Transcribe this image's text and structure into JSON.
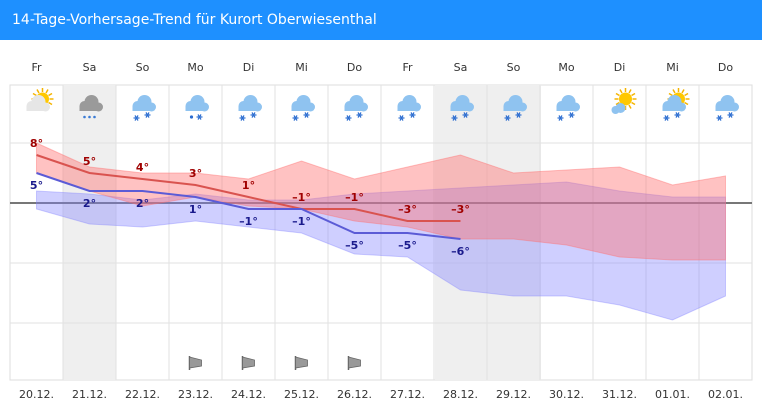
{
  "chart_data": {
    "type": "line",
    "title": "14-Tage-Vorhersage-Trend für Kurort Oberwiesenthal",
    "categories": [
      "Fr",
      "Sa",
      "So",
      "Mo",
      "Di",
      "Mi",
      "Do",
      "Fr",
      "Sa",
      "So",
      "Mo",
      "Di",
      "Mi",
      "Do"
    ],
    "dates": [
      "20.12.",
      "21.12.",
      "22.12.",
      "23.12.",
      "24.12.",
      "25.12.",
      "26.12.",
      "27.12.",
      "28.12.",
      "29.12.",
      "30.12.",
      "31.12.",
      "01.01.",
      "02.01."
    ],
    "series": [
      {
        "color": "#d9534f",
        "label_color": "#a00000",
        "values": [
          8,
          5,
          4,
          3,
          1,
          -1,
          -1,
          -3,
          -3,
          null,
          null,
          null,
          null,
          null
        ],
        "value_labels": [
          "8°",
          "5°",
          "4°",
          "3°",
          "1°",
          "–1°",
          "–1°",
          "–3°",
          "–3°",
          null,
          null,
          null,
          null,
          null
        ]
      },
      {
        "color": "#5b5bd6",
        "label_color": "#1a1a8c",
        "values": [
          5,
          2,
          2,
          1,
          -1,
          -1,
          -5,
          -5,
          -6,
          null,
          null,
          null,
          null,
          null
        ],
        "value_labels": [
          "5°",
          "2°",
          "2°",
          "1°",
          "–1°",
          "–1°",
          "–5°",
          "–5°",
          "–6°",
          null,
          null,
          null,
          null,
          null
        ]
      }
    ],
    "bands": [
      {
        "color": "rgba(130,130,255,0.38)",
        "upper": [
          2,
          1.5,
          0.5,
          1.5,
          0.5,
          0.5,
          1.5,
          2,
          2.5,
          3,
          3.5,
          2,
          1,
          1
        ],
        "lower": [
          -1,
          -3.5,
          -4,
          -3,
          -4,
          -5,
          -8.5,
          -9,
          -14.5,
          -15.5,
          -15.5,
          -17,
          -19.5,
          -15.5
        ]
      },
      {
        "color": "rgba(255,110,110,0.42)",
        "upper": [
          10,
          6,
          5,
          5,
          4,
          7,
          4,
          6,
          8,
          5,
          5.5,
          6,
          3,
          4.5
        ],
        "lower": [
          5,
          2,
          -0.5,
          1,
          -0.5,
          -1,
          -3,
          -4,
          -6,
          -6,
          -7,
          -9,
          -9.5,
          -9.5
        ]
      }
    ],
    "ylim": [
      -29.5,
      13
    ],
    "yticks": [
      10,
      0,
      -10,
      -20
    ],
    "grid": true
  }
}
